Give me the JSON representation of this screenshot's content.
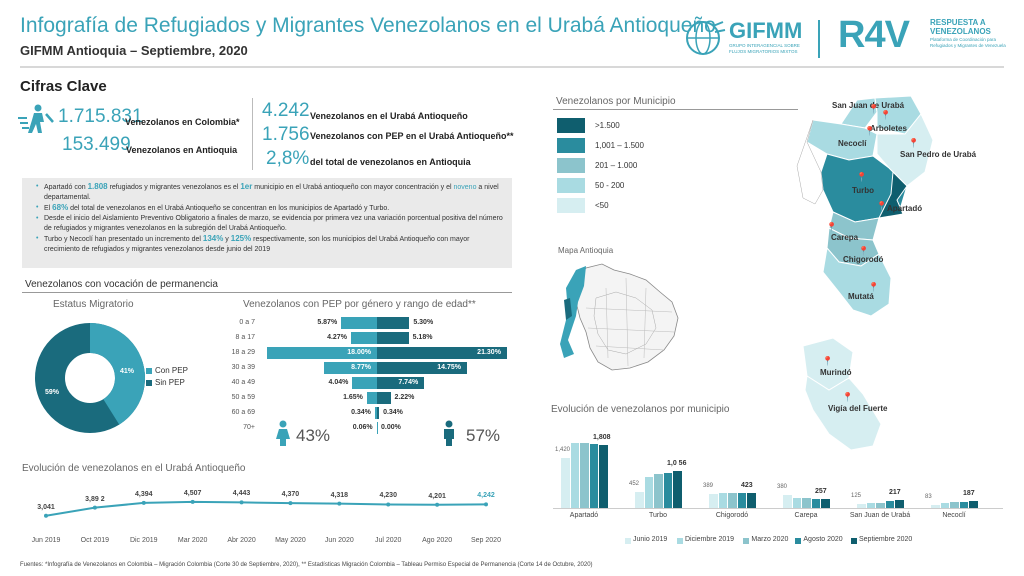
{
  "header": {
    "title": "Infografía de Refugiados y Migrantes Venezolanos en el Urabá Antioqueño",
    "subtitle": "GIFMM Antioquia – Septiembre, 2020",
    "gifmm_logo": "GIFMM",
    "gifmm_sub": "GRUPO INTERAGENCIAL SOBRE FLUJOS MIGRATORIOS MIXTOS",
    "r4v_logo": "R4V",
    "r4v_title1": "RESPUESTA A",
    "r4v_title2": "VENEZOLANOS",
    "r4v_sub": "Plataforma de Coordinación para Refugiados y Migrantes de Venezuela"
  },
  "key": {
    "title": "Cifras Clave",
    "items": [
      {
        "value": "1.715.831",
        "label": "Venezolanos en Colombia*"
      },
      {
        "value": "153.499",
        "label": "Venezolanos en Antioquia"
      },
      {
        "value": "4.242",
        "label": "Venezolanos en el Urabá Antioqueño"
      },
      {
        "value": "1.756",
        "label": "Venezolanos con PEP en el Urabá Antioqueño**"
      },
      {
        "value": "2,8%",
        "label": "del total de venezolanos en Antioquia"
      }
    ]
  },
  "bullets": {
    "b1a": "Apartadó con ",
    "b1n": "1.808",
    "b1b": " refugiados y migrantes venezolanos es el ",
    "b1r": "1er",
    "b1c": " municipio en el Urabá antioqueño con mayor concentración y el ",
    "b1o": "noveno",
    "b1d": " a nivel departamental.",
    "b2a": "El ",
    "b2n": "68%",
    "b2b": " del total de venezolanos en el Urabá Antioqueño se concentran en los municipios de Apartadó y Turbo.",
    "b3": "Desde el inicio del Aislamiento Preventivo Obligatorio a finales de marzo, se evidencia por primera vez una variación porcentual positiva del número de refugiados y migrantes venezolanos en la subregión del Urabá Antioqueño.",
    "b4a": "Turbo y Necoclí han presentado un incremento del ",
    "b4n1": "134%",
    "b4b": " y ",
    "b4n2": "125%",
    "b4c": " respectivamente, son los municipios del Urabá Antioqueño con mayor crecimiento de refugiados y migrantes venezolanos desde junio del 2019"
  },
  "permanencia": {
    "title": "Venezolanos con vocación de permanencia",
    "estatus_title": "Estatus Migratorio",
    "donut": {
      "con_pep": 41,
      "sin_pep": 59,
      "con_label": "41%",
      "sin_label": "59%",
      "legend_con": "Con PEP",
      "legend_sin": "Sin PEP",
      "color_con": "#3aa3b8",
      "color_sin": "#1a6b7d"
    }
  },
  "pyramid": {
    "title": "Venezolanos con PEP por género y rango de edad**",
    "rows": [
      {
        "age": "0 a 7",
        "f": 5.87,
        "m": 5.3,
        "fl": "5.87%",
        "ml": "5.30%"
      },
      {
        "age": "8 a 17",
        "f": 4.27,
        "m": 5.18,
        "fl": "4.27%",
        "ml": "5.18%"
      },
      {
        "age": "18 a 29",
        "f": 18.0,
        "m": 21.3,
        "fl": "18.00%",
        "ml": "21.30%"
      },
      {
        "age": "30 a 39",
        "f": 8.77,
        "m": 14.75,
        "fl": "8.77%",
        "ml": "14.75%"
      },
      {
        "age": "40 a 49",
        "f": 4.04,
        "m": 7.74,
        "fl": "4.04%",
        "ml": "7.74%"
      },
      {
        "age": "50 a 59",
        "f": 1.65,
        "m": 2.22,
        "fl": "1.65%",
        "ml": "2.22%"
      },
      {
        "age": "60 a 69",
        "f": 0.34,
        "m": 0.34,
        "fl": "0.34%",
        "ml": "0.34%"
      },
      {
        "age": "70+",
        "f": 0.06,
        "m": 0.0,
        "fl": "0.06%",
        "ml": "0.00%"
      }
    ],
    "female_total": "43%",
    "male_total": "57%",
    "color_f": "#3aa3b8",
    "color_m": "#1a6b7d"
  },
  "evolution": {
    "title": "Evolución de venezolanos en el Urabá Antioqueño",
    "labels": [
      "Jun 2019",
      "Oct 2019",
      "Dic 2019",
      "Mar 2020",
      "Abr 2020",
      "May 2020",
      "Jun 2020",
      "Jul 2020",
      "Ago 2020",
      "Sep 2020"
    ],
    "values": [
      3041,
      3892,
      4394,
      4507,
      4443,
      4370,
      4318,
      4230,
      4201,
      4242
    ],
    "value_labels": [
      "3,041",
      "3,89 2",
      "4,394",
      "4,507",
      "4,443",
      "4,370",
      "4,318",
      "4,230",
      "4,201",
      "4,242"
    ]
  },
  "map": {
    "title": "Venezolanos por Municipio",
    "legend": [
      {
        "label": ">1.500",
        "color": "#0f5e6e"
      },
      {
        "label": "1,001 – 1.500",
        "color": "#2a8c9e"
      },
      {
        "label": "201 – 1.000",
        "color": "#8cc4cc"
      },
      {
        "label": "50 - 200",
        "color": "#a9dbe2"
      },
      {
        "label": "<50",
        "color": "#d6eef1"
      }
    ],
    "inset_title": "Mapa Antioquia",
    "municipios": [
      {
        "label": "San Juan de Urabá"
      },
      {
        "label": "Arboletes"
      },
      {
        "label": "Necoclí"
      },
      {
        "label": "San Pedro de Urabá"
      },
      {
        "label": "Turbo"
      },
      {
        "label": "Apartadó"
      },
      {
        "label": "Carepa"
      },
      {
        "label": "Chigorodó"
      },
      {
        "label": "Mutatá"
      },
      {
        "label": "Murindó"
      },
      {
        "label": "Vigía del Fuerte"
      }
    ]
  },
  "chart_data": {
    "type": "bar",
    "title": "Evolución de venezolanos por municipio",
    "categories": [
      "Apartadó",
      "Turbo",
      "Chigorodó",
      "Carepa",
      "San Juan de Urabá",
      "Necoclí"
    ],
    "series": [
      {
        "name": "Junio 2019",
        "values": [
          1420,
          452,
          389,
          380,
          125,
          83
        ],
        "color": "#d6eef1"
      },
      {
        "name": "Diciembre 2019",
        "values": [
          1850,
          900,
          430,
          300,
          140,
          150
        ],
        "color": "#a9dbe2"
      },
      {
        "name": "Marzo 2020",
        "values": [
          1870,
          960,
          440,
          280,
          150,
          170
        ],
        "color": "#8cc4cc"
      },
      {
        "name": "Agosto 2020",
        "values": [
          1830,
          1000,
          430,
          260,
          210,
          180
        ],
        "color": "#2a8c9e"
      },
      {
        "name": "Septiembre 2020",
        "values": [
          1808,
          1056,
          423,
          257,
          217,
          187
        ],
        "color": "#0f5e6e"
      }
    ],
    "first_labels": [
      "1,420",
      "452",
      "389",
      "380",
      "125",
      "83"
    ],
    "last_labels": [
      "1,808",
      "1,0 56",
      "423",
      "257",
      "217",
      "187"
    ],
    "ylim": [
      0,
      2000
    ]
  },
  "footer": "Fuentes: *Infografía de Venezolanos en Colombia – Migración Colombia (Corte 30 de Septiembre, 2020), ** Estadísticas Migración Colombia – Tableau Permiso Especial de Permanencia (Corte 14 de Octubre, 2020)"
}
